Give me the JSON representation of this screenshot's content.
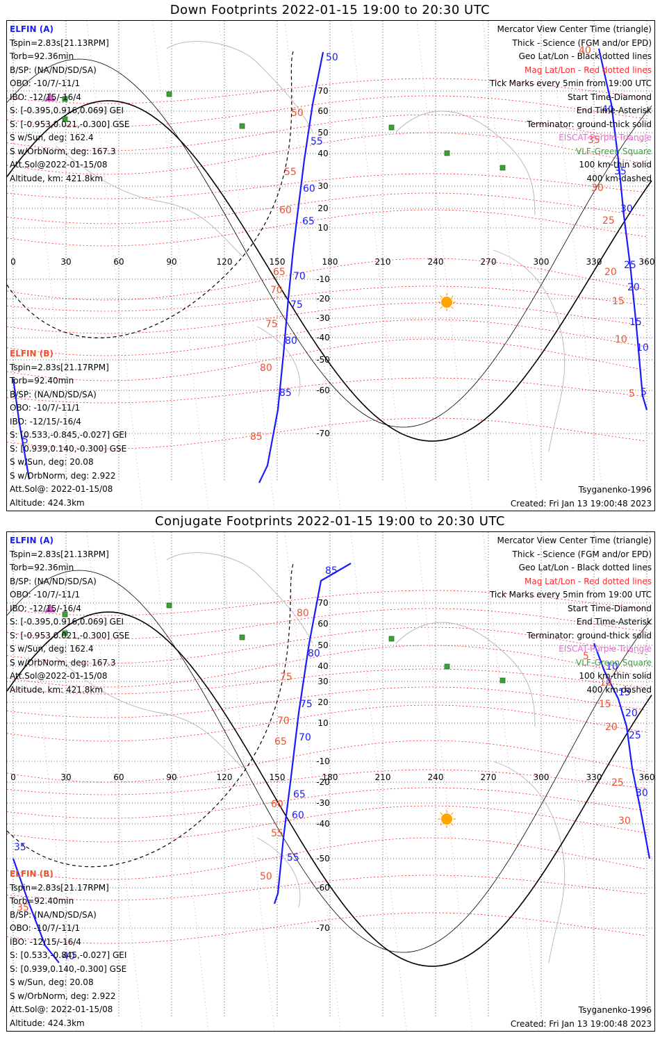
{
  "titles": {
    "down": "Down Footprints 2022-01-15 19:00 to 20:30 UTC",
    "conjugate": "Conjugate Footprints 2022-01-15 19:00 to 20:30 UTC"
  },
  "elfin_a": {
    "name": "ELFIN (A)",
    "tspin": "Tspin=2.83s[21.13RPM]",
    "torb": "Torb=92.36min",
    "bsp": "B/SP: (NA/ND/SD/SA)",
    "obo": "OBO: -10/7/-11/1",
    "ibo": "IBO: -12/15/-16/4",
    "s_gei": "S: [-0.395,0.916,0.069] GEI",
    "s_gse": "S: [-0.953,0.021,-0.300] GSE",
    "s_sun": "S w/Sun, deg: 162.4",
    "s_orb": "S w/OrbNorm, deg: 167.3",
    "attsol": "Att.Sol@2022-01-15/08",
    "altitude": "Altitude, km: 421.8km"
  },
  "elfin_b": {
    "name": "ELFIN (B)",
    "tspin": "Tspin=2.83s[21.17RPM]",
    "torb": "Torb=92.40min",
    "bsp": "B/SP: (NA/ND/SD/SA)",
    "obo": "OBO: -10/7/-11/1",
    "ibo": "IBO: -12/15/-16/4",
    "s_gei": "S: [0.533,-0.845,-0.027] GEI",
    "s_gse": "S: [0.939,0.140,-0.300] GSE",
    "s_sun": "S w/Sun, deg: 20.08",
    "s_orb": "S w/OrbNorm, deg: 2.922",
    "attsol": "Att.Sol@: 2022-01-15/08",
    "altitude": "Altitude: 424.3km"
  },
  "legend": {
    "l1": "Mercator View Center Time (triangle)",
    "l2": "Thick - Science (FGM and/or EPD)",
    "l3": "Geo Lat/Lon - Black dotted lines",
    "l4": "Mag Lat/Lon - Red dotted lines",
    "l5": "Tick Marks every 5min from 19:00 UTC",
    "l6": "Start Time-Diamond",
    "l7": "End Time-Asterisk",
    "l8": "Terminator: ground-thick solid",
    "l9": "EISCAT-Purple Triangle",
    "l10": "VLF-Green Square",
    "l11": "100 km-thin solid",
    "l12": "400 km-dashed"
  },
  "model": "Tsyganenko-1996",
  "created": "Created: Fri Jan 13 19:00:48 2023",
  "colors": {
    "track": "#1a1aff",
    "mag_grid": "#ff2020",
    "mag_label": "#f05030",
    "geo_grid": "#000000",
    "eiscat": "#e060e0",
    "vlf": "#3aa03a",
    "sun": "#ffa500",
    "coast": "#b4b4b4"
  },
  "axes": {
    "lon_ticks": [
      "0",
      "30",
      "60",
      "90",
      "120",
      "150",
      "180",
      "210",
      "240",
      "270",
      "300",
      "330",
      "360"
    ],
    "lat_ticks": [
      "70",
      "60",
      "50",
      "40",
      "30",
      "20",
      "10",
      "-10",
      "-20",
      "-30",
      "-40",
      "-50",
      "-60",
      "-70"
    ]
  },
  "tracks": {
    "down_a": {
      "blue_labels": [
        "50",
        "55",
        "60",
        "65",
        "70",
        "75",
        "80",
        "85"
      ],
      "red_labels": [
        "50",
        "55",
        "60",
        "65",
        "70",
        "75",
        "80",
        "85"
      ]
    },
    "down_b": {
      "blue_labels": [
        "40",
        "35",
        "30",
        "25",
        "20",
        "15",
        "10",
        "5"
      ],
      "red_labels": [
        "40",
        "35",
        "30",
        "25",
        "20",
        "15",
        "10",
        "5"
      ]
    },
    "down_b_edge": {
      "blue_labels": [
        "5"
      ]
    },
    "conj_a": {
      "blue_labels": [
        "85",
        "80",
        "75",
        "70",
        "65",
        "60",
        "55"
      ],
      "red_labels": [
        "80",
        "75",
        "70",
        "65",
        "60",
        "55",
        "50"
      ]
    },
    "conj_b": {
      "blue_labels": [
        "10",
        "15",
        "20",
        "25",
        "30"
      ],
      "red_labels": [
        "5",
        "10",
        "15",
        "20",
        "25",
        "30"
      ]
    },
    "conj_b_edge": {
      "blue_labels": [
        "35",
        "40"
      ],
      "red_labels": [
        "35"
      ]
    }
  }
}
